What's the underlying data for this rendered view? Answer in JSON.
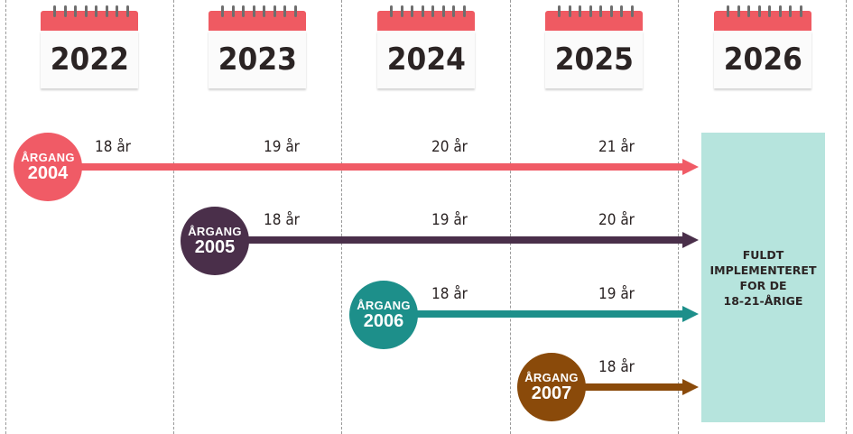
{
  "years": [
    "2022",
    "2023",
    "2024",
    "2025",
    "2026"
  ],
  "cohorts": [
    {
      "label": "ÅRGANG",
      "year": "2004",
      "color": "#f05b66",
      "ages": [
        "18 år",
        "19 år",
        "20 år",
        "21 år"
      ]
    },
    {
      "label": "ÅRGANG",
      "year": "2005",
      "color": "#4a2f4a",
      "ages": [
        "18 år",
        "19 år",
        "20 år"
      ]
    },
    {
      "label": "ÅRGANG",
      "year": "2006",
      "color": "#1d8f8a",
      "ages": [
        "18 år",
        "19 år"
      ]
    },
    {
      "label": "ÅRGANG",
      "year": "2007",
      "color": "#8a4a0a",
      "ages": [
        "18 år"
      ]
    }
  ],
  "final_box": {
    "text": "FULDT\nIMPLEMENTERET\nFOR DE\n18-21-ÅRIGE",
    "color": "#b6e4dd"
  },
  "colors": {
    "calendar_header": "#ef5a62",
    "calendar_body": "#fbfbfb",
    "text_dark": "#2b2424"
  }
}
